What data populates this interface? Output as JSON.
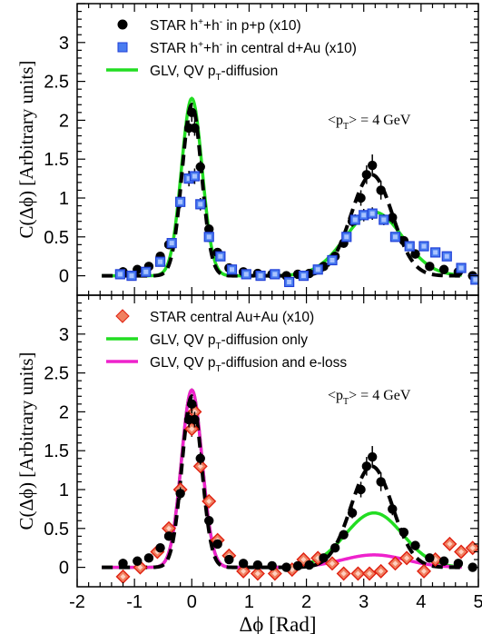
{
  "chart_data": [
    {
      "type": "scatter",
      "ylabel": "C(Δϕ) [Arbitrary units]",
      "xlim": [
        -2,
        5
      ],
      "ylim": [
        -0.25,
        3.5
      ],
      "yticks": [
        "0",
        "0.5",
        "1",
        "1.5",
        "2",
        "2.5",
        "3"
      ],
      "annotation": "<pT> = 4 GeV",
      "legend": [
        "STAR h⁺+h⁻ in p+p (x10)",
        "STAR h⁺+h⁻ in central d+Au (x10)",
        "GLV, QV pT-diffusion"
      ],
      "series": [
        {
          "name": "STAR h⁺+h⁻ in p+p (x10)",
          "marker": "circle",
          "color": "#000000",
          "points": [
            [
              -1.2,
              0.05
            ],
            [
              -0.95,
              0.08
            ],
            [
              -0.75,
              0.12
            ],
            [
              -0.55,
              0.25
            ],
            [
              -0.4,
              0.4
            ],
            [
              -0.2,
              0.95
            ],
            [
              -0.05,
              1.9
            ],
            [
              0.0,
              2.1
            ],
            [
              0.05,
              1.9
            ],
            [
              0.15,
              1.4
            ],
            [
              0.3,
              0.6
            ],
            [
              0.45,
              0.3
            ],
            [
              0.65,
              0.1
            ],
            [
              0.9,
              0.05
            ],
            [
              1.15,
              0.03
            ],
            [
              1.4,
              0.02
            ],
            [
              1.65,
              0.0
            ],
            [
              1.85,
              0.02
            ],
            [
              2.05,
              0.03
            ],
            [
              2.3,
              0.12
            ],
            [
              2.5,
              0.25
            ],
            [
              2.65,
              0.42
            ],
            [
              2.8,
              0.7
            ],
            [
              2.95,
              1.0
            ],
            [
              3.05,
              1.3
            ],
            [
              3.15,
              1.42
            ],
            [
              3.3,
              1.1
            ],
            [
              3.5,
              0.75
            ],
            [
              3.7,
              0.45
            ],
            [
              3.9,
              0.28
            ],
            [
              4.15,
              0.12
            ],
            [
              4.4,
              0.08
            ],
            [
              4.65,
              0.05
            ],
            [
              4.9,
              0.0
            ]
          ],
          "errors": [
            0.06,
            0.05,
            0.05,
            0.05,
            0.05,
            0.08,
            0.1,
            0.12,
            0.1,
            0.08,
            0.06,
            0.05,
            0.05,
            0.04,
            0.04,
            0.04,
            0.04,
            0.04,
            0.05,
            0.05,
            0.05,
            0.06,
            0.07,
            0.1,
            0.12,
            0.14,
            0.12,
            0.08,
            0.06,
            0.05,
            0.05,
            0.05,
            0.05,
            0.05
          ]
        },
        {
          "name": "STAR h⁺+h⁻ in central d+Au (x10)",
          "marker": "square",
          "color": "#1f3fd8",
          "points": [
            [
              -1.25,
              0.02
            ],
            [
              -1.05,
              0.0
            ],
            [
              -0.8,
              0.05
            ],
            [
              -0.55,
              0.18
            ],
            [
              -0.35,
              0.42
            ],
            [
              -0.2,
              0.95
            ],
            [
              -0.05,
              1.25
            ],
            [
              0.05,
              1.28
            ],
            [
              0.15,
              0.92
            ],
            [
              0.3,
              0.5
            ],
            [
              0.5,
              0.25
            ],
            [
              0.7,
              0.08
            ],
            [
              0.95,
              0.02
            ],
            [
              1.2,
              0.0
            ],
            [
              1.45,
              0.02
            ],
            [
              1.7,
              -0.08
            ],
            [
              1.95,
              0.0
            ],
            [
              2.2,
              0.08
            ],
            [
              2.45,
              0.2
            ],
            [
              2.7,
              0.5
            ],
            [
              2.85,
              0.72
            ],
            [
              3.0,
              0.78
            ],
            [
              3.15,
              0.8
            ],
            [
              3.35,
              0.72
            ],
            [
              3.55,
              0.5
            ],
            [
              3.8,
              0.38
            ],
            [
              4.05,
              0.38
            ],
            [
              4.25,
              0.3
            ],
            [
              4.45,
              0.25
            ],
            [
              4.7,
              0.1
            ],
            [
              4.95,
              -0.05
            ]
          ],
          "errors": [
            0.05,
            0.05,
            0.05,
            0.05,
            0.06,
            0.08,
            0.1,
            0.1,
            0.08,
            0.06,
            0.05,
            0.05,
            0.05,
            0.05,
            0.05,
            0.05,
            0.05,
            0.05,
            0.05,
            0.06,
            0.07,
            0.08,
            0.08,
            0.07,
            0.06,
            0.06,
            0.06,
            0.06,
            0.06,
            0.06,
            0.06
          ]
        },
        {
          "name": "GLV, QV pT-diffusion",
          "marker": "line",
          "color": "#22dd22",
          "style": "solid",
          "curve": {
            "base": 0.0,
            "near_amp": 2.28,
            "near_mu": 0.0,
            "near_sigma": 0.18,
            "away_amp": 0.82,
            "away_mu": 3.18,
            "away_sigma": 0.5
          }
        },
        {
          "name": "",
          "marker": "line",
          "color": "#000000",
          "style": "dashed",
          "curve": {
            "base": 0.0,
            "near_amp": 2.2,
            "near_mu": 0.0,
            "near_sigma": 0.17,
            "away_amp": 1.3,
            "away_mu": 3.14,
            "away_sigma": 0.36
          }
        }
      ]
    },
    {
      "type": "scatter",
      "xlabel": "Δϕ [Rad]",
      "ylabel": "C(Δϕ) [Arbitrary units]",
      "xlim": [
        -2,
        5
      ],
      "ylim": [
        -0.25,
        3.5
      ],
      "xticks": [
        "-2",
        "-1",
        "0",
        "1",
        "2",
        "3",
        "4",
        "5"
      ],
      "yticks": [
        "0",
        "0.5",
        "1",
        "1.5",
        "2",
        "2.5",
        "3"
      ],
      "annotation": "<pT> = 4 GeV",
      "legend": [
        "STAR central Au+Au (x10)",
        "GLV, QV pT-diffusion only",
        "GLV, QV pT-diffusion and e-loss"
      ],
      "series": [
        {
          "name": "STAR central Au+Au (x10)",
          "marker": "diamond",
          "color": "#e02010",
          "points": [
            [
              -1.2,
              -0.12
            ],
            [
              -0.9,
              0.0
            ],
            [
              -0.6,
              0.2
            ],
            [
              -0.4,
              0.5
            ],
            [
              -0.2,
              1.0
            ],
            [
              0.0,
              1.78
            ],
            [
              0.05,
              2.0
            ],
            [
              0.15,
              1.3
            ],
            [
              0.3,
              0.85
            ],
            [
              0.45,
              0.35
            ],
            [
              0.65,
              0.15
            ],
            [
              0.9,
              -0.05
            ],
            [
              1.15,
              -0.08
            ],
            [
              1.45,
              -0.08
            ],
            [
              1.75,
              -0.03
            ],
            [
              1.95,
              0.1
            ],
            [
              2.2,
              0.12
            ],
            [
              2.45,
              0.05
            ],
            [
              2.65,
              -0.08
            ],
            [
              2.9,
              -0.08
            ],
            [
              3.1,
              -0.08
            ],
            [
              3.3,
              -0.05
            ],
            [
              3.55,
              0.05
            ],
            [
              3.75,
              0.12
            ],
            [
              4.05,
              -0.05
            ],
            [
              4.25,
              0.1
            ],
            [
              4.5,
              0.3
            ],
            [
              4.7,
              0.2
            ],
            [
              4.9,
              0.25
            ]
          ],
          "errors": [
            0.07,
            0.07,
            0.07,
            0.07,
            0.08,
            0.1,
            0.1,
            0.09,
            0.08,
            0.07,
            0.07,
            0.07,
            0.07,
            0.07,
            0.07,
            0.07,
            0.07,
            0.07,
            0.07,
            0.07,
            0.07,
            0.07,
            0.07,
            0.07,
            0.07,
            0.07,
            0.07,
            0.07,
            0.07
          ]
        },
        {
          "name": "",
          "marker": "circle",
          "color": "#000000",
          "points": [
            [
              -1.2,
              0.05
            ],
            [
              -0.95,
              0.08
            ],
            [
              -0.75,
              0.12
            ],
            [
              -0.55,
              0.25
            ],
            [
              -0.4,
              0.4
            ],
            [
              -0.2,
              0.95
            ],
            [
              -0.05,
              1.9
            ],
            [
              0.0,
              2.1
            ],
            [
              0.05,
              1.9
            ],
            [
              0.15,
              1.4
            ],
            [
              0.3,
              0.6
            ],
            [
              0.45,
              0.3
            ],
            [
              0.65,
              0.1
            ],
            [
              0.9,
              0.05
            ],
            [
              1.15,
              0.03
            ],
            [
              1.4,
              0.02
            ],
            [
              1.65,
              0.0
            ],
            [
              1.85,
              0.02
            ],
            [
              2.05,
              0.03
            ],
            [
              2.3,
              0.12
            ],
            [
              2.5,
              0.25
            ],
            [
              2.65,
              0.42
            ],
            [
              2.8,
              0.7
            ],
            [
              2.95,
              1.0
            ],
            [
              3.05,
              1.3
            ],
            [
              3.15,
              1.42
            ],
            [
              3.3,
              1.1
            ],
            [
              3.5,
              0.75
            ],
            [
              3.7,
              0.45
            ],
            [
              3.9,
              0.28
            ],
            [
              4.15,
              0.12
            ],
            [
              4.4,
              0.08
            ],
            [
              4.65,
              0.05
            ],
            [
              4.9,
              0.0
            ]
          ],
          "errors": [
            0.06,
            0.05,
            0.05,
            0.05,
            0.05,
            0.08,
            0.1,
            0.12,
            0.1,
            0.08,
            0.06,
            0.05,
            0.05,
            0.04,
            0.04,
            0.04,
            0.04,
            0.04,
            0.05,
            0.05,
            0.05,
            0.06,
            0.07,
            0.1,
            0.12,
            0.14,
            0.12,
            0.08,
            0.06,
            0.05,
            0.05,
            0.05,
            0.05,
            0.05
          ]
        },
        {
          "name": "GLV, QV pT-diffusion only",
          "marker": "line",
          "color": "#22dd22",
          "style": "solid",
          "curve": {
            "base": 0.0,
            "near_amp": 2.28,
            "near_mu": 0.0,
            "near_sigma": 0.18,
            "away_amp": 0.7,
            "away_mu": 3.18,
            "away_sigma": 0.5
          }
        },
        {
          "name": "GLV, QV pT-diffusion and e-loss",
          "marker": "line",
          "color": "#ee22cc",
          "style": "solid",
          "curve": {
            "base": 0.0,
            "near_amp": 2.28,
            "near_mu": 0.0,
            "near_sigma": 0.18,
            "away_amp": 0.16,
            "away_mu": 3.18,
            "away_sigma": 0.55
          }
        },
        {
          "name": "",
          "marker": "line",
          "color": "#000000",
          "style": "dashed",
          "curve": {
            "base": 0.0,
            "near_amp": 2.2,
            "near_mu": 0.0,
            "near_sigma": 0.17,
            "away_amp": 1.3,
            "away_mu": 3.14,
            "away_sigma": 0.36
          }
        }
      ]
    }
  ]
}
